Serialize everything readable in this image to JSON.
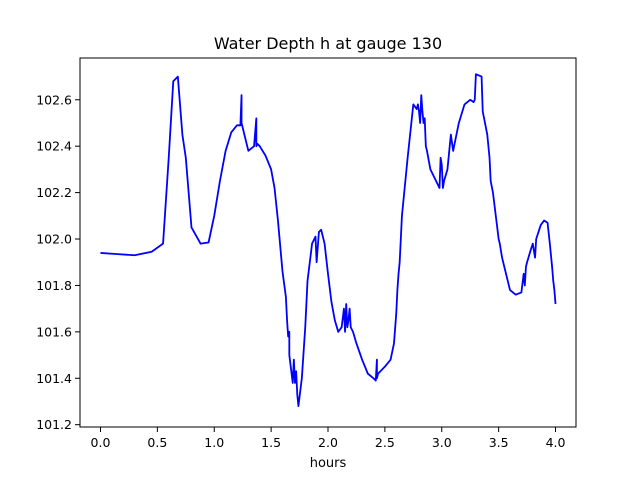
{
  "chart_data": {
    "type": "line",
    "title": "Water Depth h at gauge 130",
    "xlabel": "hours",
    "ylabel": "",
    "xlim": [
      -0.18,
      4.18
    ],
    "ylim": [
      101.19,
      102.78
    ],
    "xticks": [
      0.0,
      0.5,
      1.0,
      1.5,
      2.0,
      2.5,
      3.0,
      3.5,
      4.0
    ],
    "xtick_labels": [
      "0.0",
      "0.5",
      "1.0",
      "1.5",
      "2.0",
      "2.5",
      "3.0",
      "3.5",
      "4.0"
    ],
    "yticks": [
      101.2,
      101.4,
      101.6,
      101.8,
      102.0,
      102.2,
      102.4,
      102.6
    ],
    "ytick_labels": [
      "101.2",
      "101.4",
      "101.6",
      "101.8",
      "102.0",
      "102.2",
      "102.4",
      "102.6"
    ],
    "grid": false,
    "series": [
      {
        "color": "#0000ff",
        "x": [
          0.0,
          0.15,
          0.3,
          0.45,
          0.55,
          0.6,
          0.64,
          0.68,
          0.72,
          0.75,
          0.8,
          0.88,
          0.95,
          1.0,
          1.05,
          1.1,
          1.15,
          1.2,
          1.23,
          1.24,
          1.24,
          1.25,
          1.27,
          1.3,
          1.35,
          1.37,
          1.37,
          1.38,
          1.4,
          1.45,
          1.5,
          1.53,
          1.56,
          1.6,
          1.63,
          1.64,
          1.65,
          1.66,
          1.66,
          1.67,
          1.68,
          1.69,
          1.7,
          1.71,
          1.72,
          1.73,
          1.74,
          1.77,
          1.8,
          1.82,
          1.84,
          1.86,
          1.89,
          1.9,
          1.92,
          1.94,
          1.97,
          2.0,
          2.03,
          2.06,
          2.09,
          2.12,
          2.14,
          2.15,
          2.16,
          2.17,
          2.18,
          2.19,
          2.2,
          2.22,
          2.25,
          2.3,
          2.35,
          2.4,
          2.42,
          2.43,
          2.43,
          2.44,
          2.5,
          2.55,
          2.58,
          2.6,
          2.61,
          2.62,
          2.63,
          2.65,
          2.7,
          2.75,
          2.78,
          2.79,
          2.8,
          2.81,
          2.82,
          2.83,
          2.84,
          2.85,
          2.86,
          2.87,
          2.9,
          2.95,
          2.98,
          2.99,
          3.0,
          3.01,
          3.02,
          3.05,
          3.08,
          3.1,
          3.15,
          3.2,
          3.25,
          3.28,
          3.29,
          3.3,
          3.35,
          3.36,
          3.4,
          3.42,
          3.43,
          3.45,
          3.48,
          3.5,
          3.51,
          3.52,
          3.53,
          3.55,
          3.58,
          3.6,
          3.65,
          3.7,
          3.72,
          3.73,
          3.74,
          3.75,
          3.78,
          3.8,
          3.82,
          3.83,
          3.85,
          3.87,
          3.9,
          3.93,
          3.95,
          3.97,
          3.98,
          3.99,
          4.0
        ],
        "y": [
          101.94,
          101.935,
          101.93,
          101.945,
          101.98,
          102.35,
          102.68,
          102.7,
          102.45,
          102.35,
          102.05,
          101.98,
          101.985,
          102.1,
          102.25,
          102.38,
          102.46,
          102.49,
          102.49,
          102.62,
          102.5,
          102.48,
          102.44,
          102.38,
          102.4,
          102.52,
          102.4,
          102.41,
          102.4,
          102.36,
          102.3,
          102.22,
          102.08,
          101.86,
          101.75,
          101.65,
          101.58,
          101.6,
          101.5,
          101.46,
          101.42,
          101.38,
          101.48,
          101.38,
          101.43,
          101.33,
          101.28,
          101.4,
          101.62,
          101.82,
          101.9,
          101.98,
          102.01,
          101.9,
          102.03,
          102.04,
          101.98,
          101.85,
          101.73,
          101.65,
          101.6,
          101.62,
          101.7,
          101.6,
          101.72,
          101.62,
          101.65,
          101.7,
          101.62,
          101.6,
          101.55,
          101.48,
          101.42,
          101.4,
          101.39,
          101.48,
          101.4,
          101.42,
          101.45,
          101.48,
          101.55,
          101.68,
          101.78,
          101.85,
          101.9,
          102.1,
          102.35,
          102.58,
          102.56,
          102.58,
          102.55,
          102.5,
          102.62,
          102.55,
          102.5,
          102.52,
          102.4,
          102.38,
          102.3,
          102.25,
          102.22,
          102.35,
          102.32,
          102.22,
          102.25,
          102.3,
          102.45,
          102.38,
          102.5,
          102.58,
          102.6,
          102.59,
          102.6,
          102.71,
          102.7,
          102.55,
          102.45,
          102.35,
          102.25,
          102.2,
          102.08,
          102.0,
          101.98,
          101.95,
          101.92,
          101.88,
          101.82,
          101.78,
          101.76,
          101.77,
          101.85,
          101.8,
          101.88,
          101.9,
          101.95,
          101.98,
          101.92,
          102.0,
          102.03,
          102.06,
          102.08,
          102.07,
          101.98,
          101.88,
          101.82,
          101.78,
          101.72
        ]
      }
    ]
  }
}
